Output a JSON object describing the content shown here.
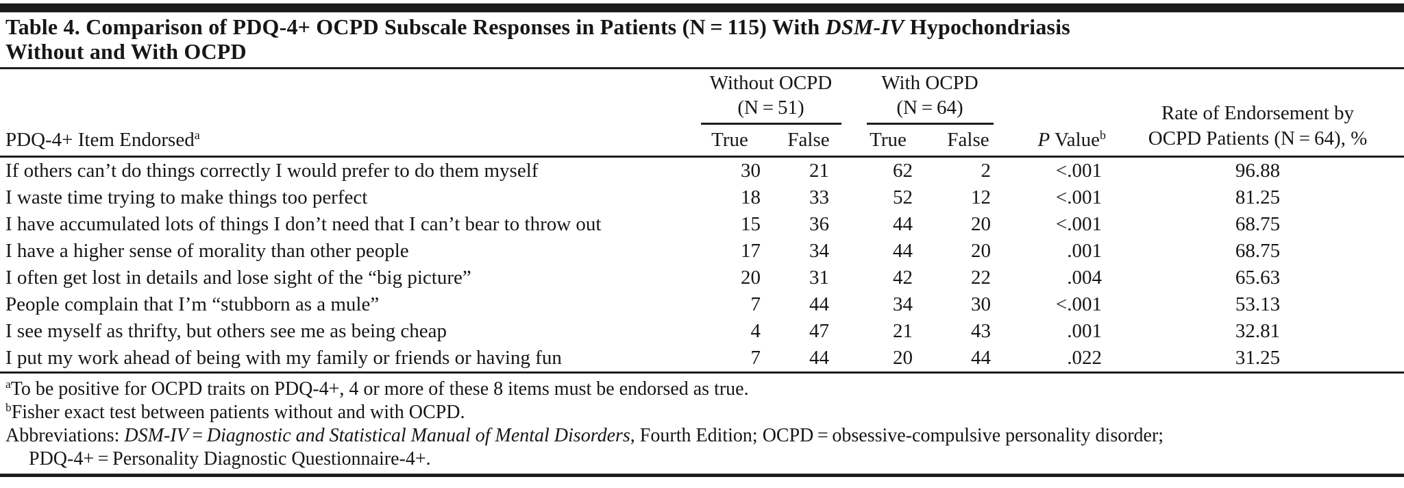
{
  "title": {
    "line1_rich": [
      {
        "t": "Table 4. Comparison of PDQ-4+ OCPD Subscale Responses in Patients (N = 115) With "
      },
      {
        "t": "DSM-IV",
        "i": true
      },
      {
        "t": " Hypochondriasis"
      }
    ],
    "line2": "Without and With OCPD"
  },
  "header": {
    "item_rich": [
      {
        "t": "PDQ-4+ Item Endorsed"
      },
      {
        "t": "a",
        "sup": true
      }
    ],
    "group1": {
      "line1": "Without OCPD",
      "line2": "(N = 51)"
    },
    "group2": {
      "line1": "With OCPD",
      "line2": "(N = 64)"
    },
    "true_label": "True",
    "false_label": "False",
    "p_rich": [
      {
        "t": "P",
        "i": true
      },
      {
        "t": " Value"
      },
      {
        "t": "b",
        "sup": true
      }
    ],
    "rate": {
      "line1": "Rate of Endorsement by",
      "line2": "OCPD Patients (N = 64), %"
    }
  },
  "table": {
    "rows": [
      {
        "item": "If others can’t do things correctly I would prefer to do them myself",
        "values": [
          "30",
          "21",
          "62",
          "2",
          "<.001",
          "96.88"
        ]
      },
      {
        "item": "I waste time trying to make things too perfect",
        "values": [
          "18",
          "33",
          "52",
          "12",
          "<.001",
          "81.25"
        ]
      },
      {
        "item": "I have accumulated lots of things I don’t need that I can’t bear to throw out",
        "values": [
          "15",
          "36",
          "44",
          "20",
          "<.001",
          "68.75"
        ]
      },
      {
        "item": "I have a higher sense of morality than other people",
        "values": [
          "17",
          "34",
          "44",
          "20",
          ".001",
          "68.75"
        ]
      },
      {
        "item": "I often get lost in details and lose sight of the “big picture”",
        "values": [
          "20",
          "31",
          "42",
          "22",
          ".004",
          "65.63"
        ]
      },
      {
        "item": "People complain that I’m “stubborn as a mule”",
        "values": [
          "7",
          "44",
          "34",
          "30",
          "<.001",
          "53.13"
        ]
      },
      {
        "item": "I see myself as thrifty, but others see me as being cheap",
        "values": [
          "4",
          "47",
          "21",
          "43",
          ".001",
          "32.81"
        ]
      },
      {
        "item": "I put my work ahead of being with my family or friends or having fun",
        "values": [
          "7",
          "44",
          "20",
          "44",
          ".022",
          "31.25"
        ]
      }
    ]
  },
  "footnotes": {
    "a_rich": [
      {
        "t": "a",
        "sup": true
      },
      {
        "t": "To be positive for OCPD traits on PDQ-4+, 4 or more of these 8 items must be endorsed as true."
      }
    ],
    "b_rich": [
      {
        "t": "b",
        "sup": true
      },
      {
        "t": "Fisher exact test between patients without and with OCPD."
      }
    ],
    "abbrev1_rich": [
      {
        "t": "Abbreviations: "
      },
      {
        "t": "DSM-IV",
        "i": true
      },
      {
        "t": " = "
      },
      {
        "t": "Diagnostic and Statistical Manual of Mental Disorders",
        "i": true
      },
      {
        "t": ", Fourth Edition; OCPD = obsessive-compulsive personality disorder;"
      }
    ],
    "abbrev2_rich": [
      {
        "t": "PDQ-4+ = Personality Diagnostic Questionnaire-4+."
      }
    ]
  },
  "colors": {
    "ink": "#161616",
    "rule": "#1c1c1c",
    "background": "#ffffff"
  }
}
